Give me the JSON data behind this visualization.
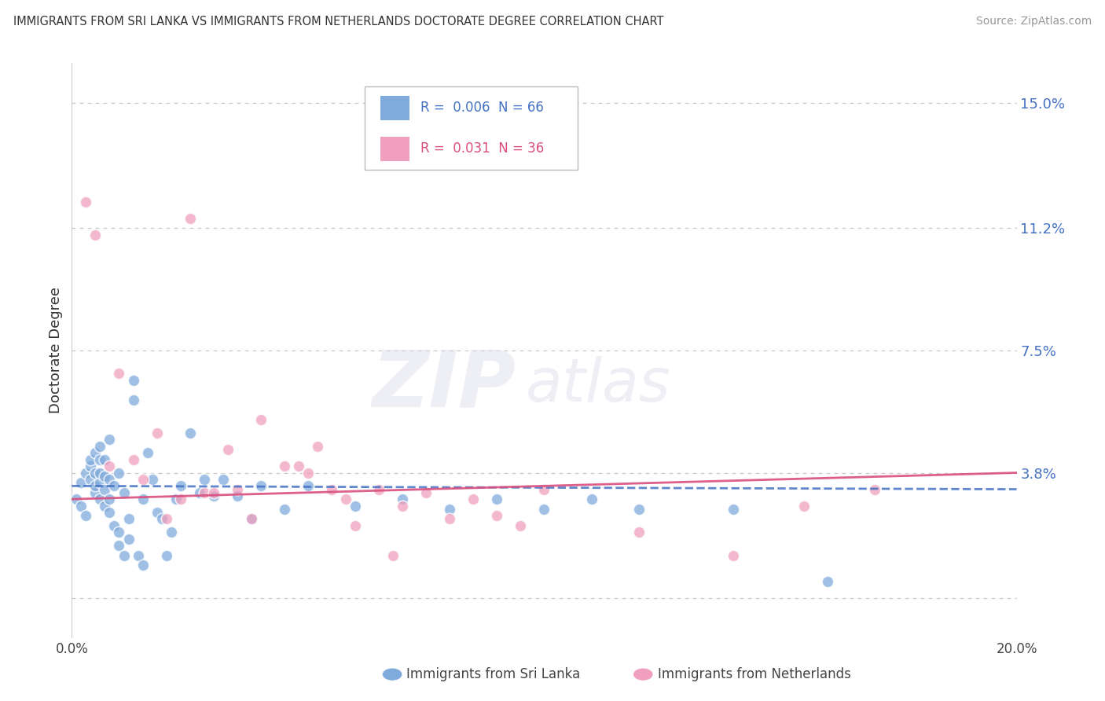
{
  "title": "IMMIGRANTS FROM SRI LANKA VS IMMIGRANTS FROM NETHERLANDS DOCTORATE DEGREE CORRELATION CHART",
  "source": "Source: ZipAtlas.com",
  "ylabel": "Doctorate Degree",
  "ytick_values": [
    0.0,
    0.038,
    0.075,
    0.112,
    0.15
  ],
  "ytick_labels": [
    "",
    "3.8%",
    "7.5%",
    "11.2%",
    "15.0%"
  ],
  "xmin": 0.0,
  "xmax": 0.2,
  "ymin": -0.012,
  "ymax": 0.162,
  "legend1_R": "0.006",
  "legend1_N": "66",
  "legend2_R": "0.031",
  "legend2_N": "36",
  "sri_lanka_color": "#7faadc",
  "netherlands_color": "#f0a0be",
  "sri_lanka_line_color": "#4472c4",
  "netherlands_line_color": "#d94f7e",
  "watermark_zip": "ZIP",
  "watermark_atlas": "atlas",
  "sri_lanka_x": [
    0.001,
    0.002,
    0.002,
    0.003,
    0.003,
    0.004,
    0.004,
    0.004,
    0.005,
    0.005,
    0.005,
    0.005,
    0.006,
    0.006,
    0.006,
    0.006,
    0.006,
    0.007,
    0.007,
    0.007,
    0.007,
    0.008,
    0.008,
    0.008,
    0.008,
    0.009,
    0.009,
    0.01,
    0.01,
    0.01,
    0.011,
    0.011,
    0.012,
    0.012,
    0.013,
    0.013,
    0.014,
    0.015,
    0.015,
    0.016,
    0.017,
    0.018,
    0.019,
    0.02,
    0.021,
    0.022,
    0.023,
    0.025,
    0.027,
    0.028,
    0.03,
    0.032,
    0.035,
    0.038,
    0.04,
    0.045,
    0.05,
    0.06,
    0.07,
    0.08,
    0.09,
    0.1,
    0.11,
    0.12,
    0.14,
    0.16
  ],
  "sri_lanka_y": [
    0.03,
    0.028,
    0.035,
    0.025,
    0.038,
    0.036,
    0.04,
    0.042,
    0.032,
    0.034,
    0.038,
    0.044,
    0.03,
    0.035,
    0.038,
    0.042,
    0.046,
    0.028,
    0.033,
    0.037,
    0.042,
    0.026,
    0.03,
    0.036,
    0.048,
    0.022,
    0.034,
    0.016,
    0.02,
    0.038,
    0.013,
    0.032,
    0.018,
    0.024,
    0.06,
    0.066,
    0.013,
    0.01,
    0.03,
    0.044,
    0.036,
    0.026,
    0.024,
    0.013,
    0.02,
    0.03,
    0.034,
    0.05,
    0.032,
    0.036,
    0.031,
    0.036,
    0.031,
    0.024,
    0.034,
    0.027,
    0.034,
    0.028,
    0.03,
    0.027,
    0.03,
    0.027,
    0.03,
    0.027,
    0.027,
    0.005
  ],
  "netherlands_x": [
    0.003,
    0.005,
    0.008,
    0.01,
    0.013,
    0.015,
    0.018,
    0.02,
    0.023,
    0.025,
    0.028,
    0.03,
    0.033,
    0.035,
    0.038,
    0.04,
    0.045,
    0.048,
    0.05,
    0.052,
    0.055,
    0.058,
    0.06,
    0.065,
    0.068,
    0.07,
    0.075,
    0.08,
    0.085,
    0.09,
    0.095,
    0.1,
    0.12,
    0.14,
    0.155,
    0.17
  ],
  "netherlands_y": [
    0.12,
    0.11,
    0.04,
    0.068,
    0.042,
    0.036,
    0.05,
    0.024,
    0.03,
    0.115,
    0.032,
    0.032,
    0.045,
    0.033,
    0.024,
    0.054,
    0.04,
    0.04,
    0.038,
    0.046,
    0.033,
    0.03,
    0.022,
    0.033,
    0.013,
    0.028,
    0.032,
    0.024,
    0.03,
    0.025,
    0.022,
    0.033,
    0.02,
    0.013,
    0.028,
    0.033
  ],
  "sri_lanka_trend_x": [
    0.0,
    0.2
  ],
  "sri_lanka_trend_y": [
    0.034,
    0.033
  ],
  "netherlands_trend_x": [
    0.0,
    0.2
  ],
  "netherlands_trend_y": [
    0.03,
    0.038
  ]
}
